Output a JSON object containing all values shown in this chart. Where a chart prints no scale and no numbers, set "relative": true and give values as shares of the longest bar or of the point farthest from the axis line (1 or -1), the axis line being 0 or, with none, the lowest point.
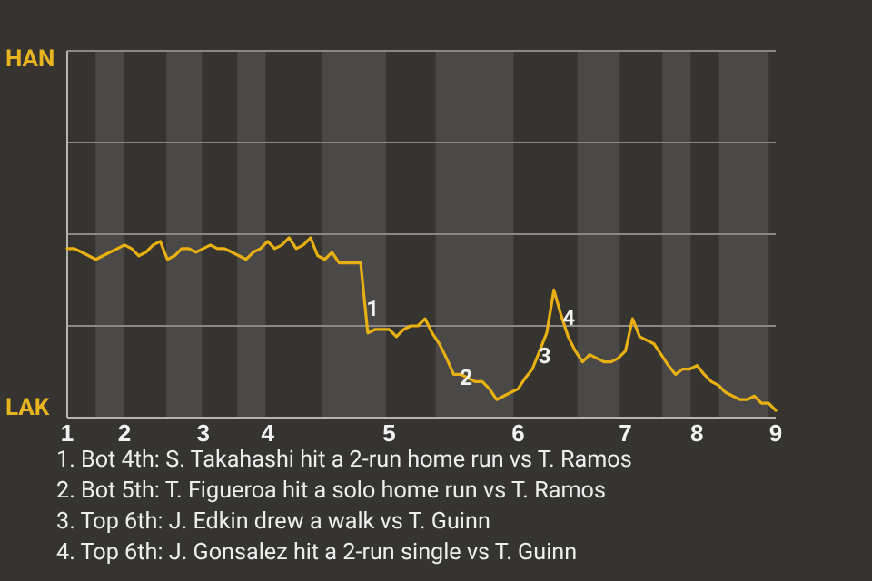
{
  "chart_data": {
    "type": "line",
    "relative": true,
    "categories": [
      "1",
      null,
      null,
      null,
      null,
      null,
      null,
      null,
      "2",
      null,
      null,
      null,
      null,
      null,
      null,
      null,
      null,
      null,
      null,
      "3",
      null,
      null,
      null,
      null,
      null,
      null,
      null,
      null,
      "4",
      null,
      null,
      null,
      null,
      null,
      null,
      null,
      null,
      null,
      null,
      null,
      null,
      null,
      null,
      null,
      null,
      "5",
      null,
      null,
      null,
      null,
      null,
      null,
      null,
      null,
      null,
      null,
      null,
      null,
      null,
      null,
      null,
      null,
      null,
      "6",
      null,
      null,
      null,
      null,
      null,
      null,
      null,
      null,
      null,
      null,
      null,
      null,
      null,
      null,
      "7",
      null,
      null,
      null,
      null,
      null,
      null,
      null,
      null,
      null,
      "8",
      null,
      null,
      null,
      null,
      null,
      null,
      null,
      null,
      null,
      null,
      "9"
    ],
    "ref_lines": [
      {
        "axis": "y",
        "value": 0.51,
        "color": "#8a8987"
      },
      {
        "axis": "y",
        "value": 1.02,
        "color": "#8a8987"
      },
      {
        "axis": "y",
        "value": 1.53,
        "color": "#8a8987"
      },
      {
        "axis": "y",
        "value": 2.04,
        "color": "#8a8987"
      }
    ],
    "marker": "none",
    "line_style": "solid",
    "series": [
      {
        "color": "#e8b010",
        "values": [
          0.94,
          0.94,
          0.92,
          0.9,
          0.88,
          0.9,
          0.92,
          0.94,
          0.96,
          0.94,
          0.9,
          0.92,
          0.96,
          0.98,
          0.88,
          0.9,
          0.94,
          0.94,
          0.92,
          0.94,
          0.96,
          0.94,
          0.94,
          0.92,
          0.9,
          0.88,
          0.92,
          0.94,
          0.98,
          0.94,
          0.96,
          1,
          0.94,
          0.96,
          1,
          0.9,
          0.88,
          0.92,
          0.86,
          0.86,
          0.86,
          0.86,
          0.47,
          0.49,
          0.49,
          0.49,
          0.45,
          0.49,
          0.51,
          0.51,
          0.55,
          0.47,
          0.41,
          0.33,
          0.24,
          0.24,
          0.22,
          0.2,
          0.2,
          0.16,
          0.1,
          0.12,
          0.14,
          0.16,
          0.22,
          0.27,
          0.37,
          0.47,
          0.71,
          0.57,
          0.45,
          0.37,
          0.31,
          0.35,
          0.33,
          0.31,
          0.31,
          0.33,
          0.37,
          0.55,
          0.45,
          0.43,
          0.41,
          0.35,
          0.29,
          0.24,
          0.27,
          0.27,
          0.29,
          0.24,
          0.2,
          0.18,
          0.14,
          0.12,
          0.1,
          0.1,
          0.12,
          0.08,
          0.08,
          0.04
        ]
      }
    ],
    "annotations": [
      "HAN",
      "LAK",
      "1",
      "2",
      "3",
      "4",
      "1. Bot 4th: S. Takahashi hit a 2-run home run vs T. Ramos",
      "2. Bot 5th: T. Figueroa hit a solo home run vs T. Ramos",
      "3. Top 6th: J. Edkin drew a walk vs T. Guinn",
      "4. Top 6th: J. Gonsalez hit a 2-run single vs T. Guinn"
    ]
  }
}
